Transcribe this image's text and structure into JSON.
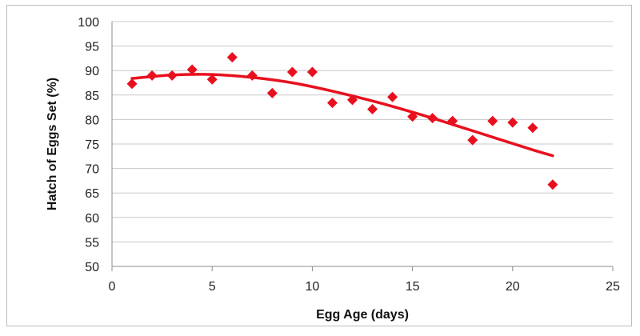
{
  "chart_data": {
    "type": "scatter",
    "title": "",
    "xlabel": "Egg Age (days)",
    "ylabel": "Hatch of Eggs Set (%)",
    "xlim": [
      0,
      25
    ],
    "ylim": [
      50,
      100
    ],
    "x_ticks": [
      0,
      5,
      10,
      15,
      20,
      25
    ],
    "y_ticks": [
      50,
      55,
      60,
      65,
      70,
      75,
      80,
      85,
      90,
      95,
      100
    ],
    "grid": "horizontal",
    "legend": "none",
    "series": [
      {
        "marker": "diamond",
        "color": "#e8101e",
        "points": [
          {
            "x": 1,
            "y": 87.3
          },
          {
            "x": 2,
            "y": 89.0
          },
          {
            "x": 3,
            "y": 89.0
          },
          {
            "x": 4,
            "y": 90.2
          },
          {
            "x": 5,
            "y": 88.2
          },
          {
            "x": 6,
            "y": 92.7
          },
          {
            "x": 7,
            "y": 89.0
          },
          {
            "x": 8,
            "y": 85.4
          },
          {
            "x": 9,
            "y": 89.7
          },
          {
            "x": 10,
            "y": 89.7
          },
          {
            "x": 11,
            "y": 83.4
          },
          {
            "x": 12,
            "y": 84.0
          },
          {
            "x": 13,
            "y": 82.1
          },
          {
            "x": 14,
            "y": 84.6
          },
          {
            "x": 15,
            "y": 80.6
          },
          {
            "x": 16,
            "y": 80.3
          },
          {
            "x": 17,
            "y": 79.7
          },
          {
            "x": 18,
            "y": 75.8
          },
          {
            "x": 19,
            "y": 79.7
          },
          {
            "x": 20,
            "y": 79.4
          },
          {
            "x": 21,
            "y": 78.3
          },
          {
            "x": 22,
            "y": 66.7
          }
        ]
      }
    ],
    "trendline": {
      "kind": "polynomial",
      "color": "#e8101e",
      "x_range": [
        1,
        22
      ],
      "points": [
        {
          "x": 1,
          "y": 88.4
        },
        {
          "x": 3,
          "y": 89.1
        },
        {
          "x": 5,
          "y": 89.2
        },
        {
          "x": 7,
          "y": 88.6
        },
        {
          "x": 9,
          "y": 87.5
        },
        {
          "x": 11,
          "y": 85.8
        },
        {
          "x": 13,
          "y": 83.8
        },
        {
          "x": 15,
          "y": 81.5
        },
        {
          "x": 17,
          "y": 79.0
        },
        {
          "x": 19,
          "y": 76.4
        },
        {
          "x": 21,
          "y": 73.8
        },
        {
          "x": 22,
          "y": 72.6
        }
      ]
    }
  }
}
